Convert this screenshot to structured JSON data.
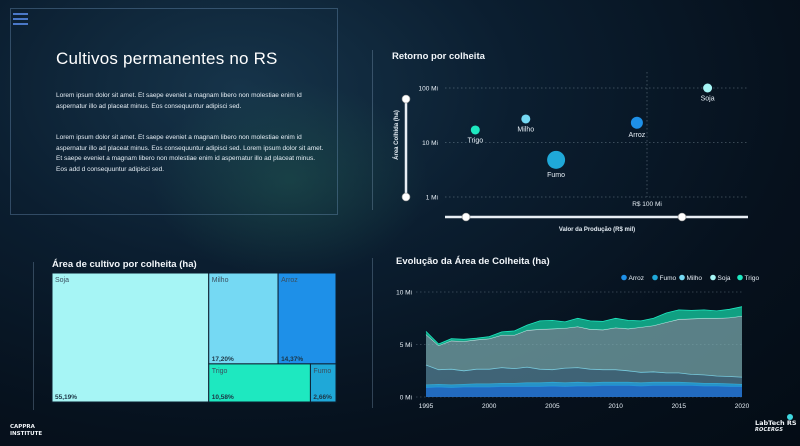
{
  "menu": {
    "icon": "hamburger-menu-icon"
  },
  "intro": {
    "title": "Cultivos permanentes no RS",
    "paragraph1": "Lorem ipsum dolor sit amet. Et saepe eveniet a magnam libero non molestiae enim id aspernatur illo ad placeat minus. Eos consequuntur adipisci sed.",
    "paragraph2": "Lorem ipsum dolor sit amet. Et saepe eveniet a magnam libero non molestiae enim id aspernatur illo ad placeat minus. Eos consequuntur adipisci sed. Lorem ipsum dolor sit amet. Et saepe eveniet a magnam libero non molestiae enim id aspernatur illo ad placeat minus. Eos add d consequuntur adipisci sed."
  },
  "colors": {
    "Soja": "#a6f5f5",
    "Milho": "#75d9f3",
    "Arroz": "#1e90e8",
    "Trigo": "#1ee8c0",
    "Fumo": "#1fa8d8"
  },
  "footer": {
    "brand_line1": "CAPPRA",
    "brand_line2": "INSTITUTE",
    "right_line1": "LabTech RS",
    "right_line2": "ROCERGS"
  },
  "chart_data": [
    {
      "type": "scatter",
      "title": "Retorno por colheita",
      "xlabel": "Valor da Produção (R$ mil)",
      "ylabel": "Área Colhida (ha)",
      "y_scale": "log",
      "y_ticks": [
        "100 Mi",
        "10 Mi",
        "1 Mi"
      ],
      "x_ticks": [
        "R$ 100 Mi"
      ],
      "points": [
        {
          "name": "Soja",
          "x": 130,
          "y": 100,
          "size": 1
        },
        {
          "name": "Milho",
          "x": 40,
          "y": 27,
          "size": 1
        },
        {
          "name": "Arroz",
          "x": 95,
          "y": 23,
          "size": 2
        },
        {
          "name": "Trigo",
          "x": 15,
          "y": 17,
          "size": 1
        },
        {
          "name": "Fumo",
          "x": 55,
          "y": 4.8,
          "size": 3
        }
      ]
    },
    {
      "type": "treemap",
      "title": "Área de cultivo por colheita (ha)",
      "items": [
        {
          "name": "Soja",
          "share_label": "55,19%",
          "share": 55.19
        },
        {
          "name": "Milho",
          "share_label": "17,20%",
          "share": 17.2
        },
        {
          "name": "Arroz",
          "share_label": "14,37%",
          "share": 14.37
        },
        {
          "name": "Trigo",
          "share_label": "10,58%",
          "share": 10.58
        },
        {
          "name": "Fumo",
          "share_label": "2,66%",
          "share": 2.66
        }
      ]
    },
    {
      "type": "area",
      "title": "Evolução da Área de Colheita (ha)",
      "legend": [
        "Arroz",
        "Fumo",
        "Milho",
        "Soja",
        "Trigo"
      ],
      "legend_position": "top-right",
      "y_ticks": [
        "10 Mi",
        "5 Mi",
        "0 Mi"
      ],
      "x_ticks": [
        "1995",
        "2000",
        "2005",
        "2010",
        "2015",
        "2020"
      ],
      "x": [
        1995,
        1996,
        1997,
        1998,
        1999,
        2000,
        2001,
        2002,
        2003,
        2004,
        2005,
        2006,
        2007,
        2008,
        2009,
        2010,
        2011,
        2012,
        2013,
        2014,
        2015,
        2016,
        2017,
        2018,
        2019,
        2020
      ],
      "series": [
        {
          "name": "Arroz",
          "values": [
            0.9,
            0.95,
            0.9,
            0.95,
            0.95,
            0.95,
            1.0,
            1.0,
            1.0,
            1.0,
            1.05,
            1.0,
            1.05,
            1.05,
            1.1,
            1.1,
            1.1,
            1.05,
            1.1,
            1.1,
            1.1,
            1.1,
            1.05,
            1.05,
            1.0,
            1.0
          ]
        },
        {
          "name": "Fumo",
          "values": [
            0.25,
            0.25,
            0.25,
            0.25,
            0.3,
            0.3,
            0.3,
            0.3,
            0.35,
            0.35,
            0.35,
            0.35,
            0.35,
            0.3,
            0.3,
            0.3,
            0.3,
            0.3,
            0.3,
            0.3,
            0.3,
            0.25,
            0.25,
            0.25,
            0.25,
            0.2
          ]
        },
        {
          "name": "Milho",
          "values": [
            1.9,
            1.4,
            1.5,
            1.3,
            1.4,
            1.4,
            1.5,
            1.4,
            1.5,
            1.3,
            1.2,
            1.4,
            1.4,
            1.3,
            1.2,
            1.2,
            1.1,
            1.0,
            1.0,
            0.9,
            0.9,
            0.8,
            0.8,
            0.7,
            0.7,
            0.7
          ]
        },
        {
          "name": "Soja",
          "values": [
            2.9,
            2.3,
            2.7,
            2.8,
            2.8,
            2.9,
            3.1,
            3.2,
            3.5,
            3.8,
            3.9,
            3.8,
            3.9,
            3.8,
            3.8,
            4.0,
            4.0,
            4.3,
            4.4,
            4.8,
            5.1,
            5.3,
            5.4,
            5.5,
            5.6,
            5.8
          ]
        },
        {
          "name": "Trigo",
          "values": [
            0.3,
            0.15,
            0.2,
            0.2,
            0.15,
            0.2,
            0.3,
            0.4,
            0.5,
            0.8,
            0.8,
            0.6,
            0.8,
            0.8,
            0.8,
            0.9,
            0.8,
            0.6,
            0.7,
            0.9,
            0.9,
            0.8,
            0.8,
            0.7,
            0.8,
            0.9
          ]
        }
      ],
      "ylim": [
        0,
        10
      ]
    }
  ]
}
